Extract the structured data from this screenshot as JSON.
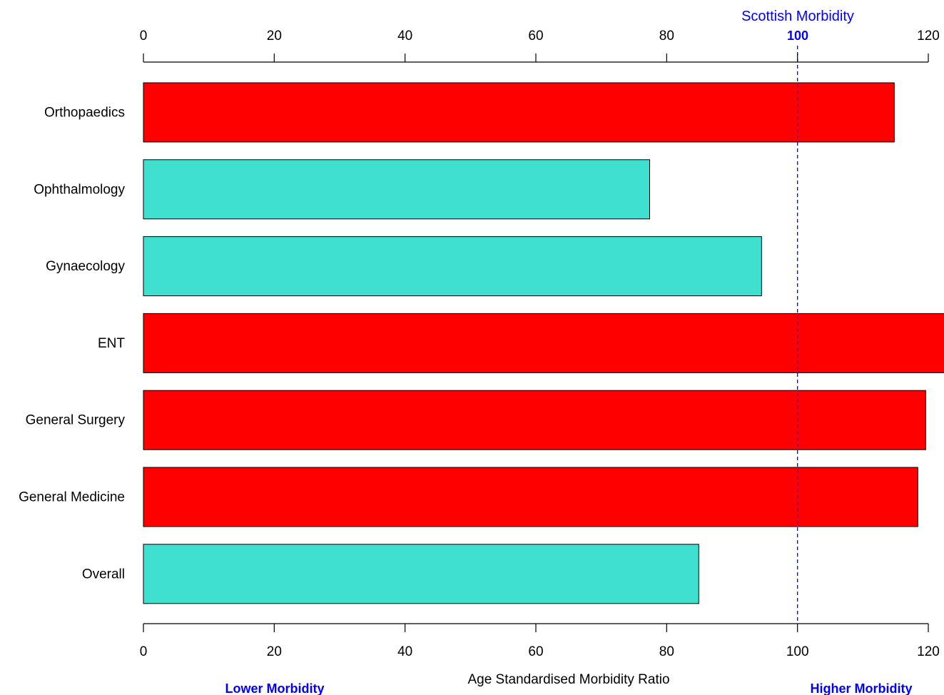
{
  "chart_data": {
    "type": "bar",
    "orientation": "horizontal",
    "categories": [
      "Orthopaedics",
      "Ophthalmology",
      "Gynaecology",
      "ENT",
      "General Surgery",
      "General Medicine",
      "Overall"
    ],
    "values": [
      114.8,
      77.4,
      94.5,
      124.0,
      119.6,
      118.4,
      84.9
    ],
    "bar_colors": [
      "#ff0000",
      "#40e0d0",
      "#40e0d0",
      "#ff0000",
      "#ff0000",
      "#ff0000",
      "#40e0d0"
    ],
    "xlabel": "Age Standardised Morbidity Ratio",
    "xlim": [
      0,
      120
    ],
    "xticks": [
      0,
      20,
      40,
      60,
      80,
      100,
      120
    ],
    "grid": false,
    "reference_line": {
      "value": 100,
      "label": "Scottish Morbidity",
      "value_label": "100",
      "color": "#0000ff"
    },
    "annotations": {
      "lower": "Lower Morbidity",
      "higher": "Higher Morbidity",
      "color": "#0000ff"
    },
    "colors": {
      "above_reference": "#ff0000",
      "below_reference": "#40e0d0",
      "bar_stroke": "#000000"
    }
  }
}
